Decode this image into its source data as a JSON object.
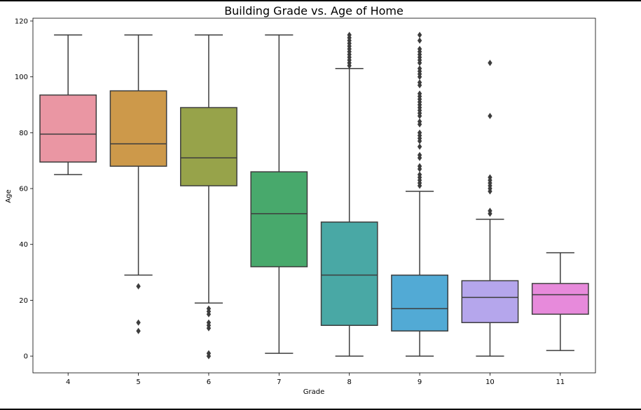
{
  "chart_data": {
    "type": "box",
    "title": "Building Grade vs. Age of Home",
    "xlabel": "Grade",
    "ylabel": "Age",
    "ylim": [
      -6,
      121
    ],
    "yticks": [
      "0",
      "20",
      "40",
      "60",
      "80",
      "100",
      "120"
    ],
    "grid": false,
    "legend": "none",
    "categories": [
      "4",
      "5",
      "6",
      "7",
      "8",
      "9",
      "10",
      "11"
    ],
    "boxes": [
      {
        "category": "4",
        "whisker_low": 65,
        "q1": 69.5,
        "median": 79.5,
        "q3": 93.5,
        "whisker_high": 115,
        "outliers": [],
        "color": "#ea96a3"
      },
      {
        "category": "5",
        "whisker_low": 29,
        "q1": 68,
        "median": 76,
        "q3": 95,
        "whisker_high": 115,
        "outliers": [
          25,
          12,
          9
        ],
        "color": "#cd994a"
      },
      {
        "category": "6",
        "whisker_low": 19,
        "q1": 61,
        "median": 71,
        "q3": 89,
        "whisker_high": 115,
        "outliers": [
          17,
          16,
          15,
          12,
          11,
          10,
          1,
          0
        ],
        "color": "#97a34a"
      },
      {
        "category": "7",
        "whisker_low": 1,
        "q1": 32,
        "median": 51,
        "q3": 66,
        "whisker_high": 115,
        "outliers": [],
        "color": "#48a96c"
      },
      {
        "category": "8",
        "whisker_low": 0,
        "q1": 11,
        "median": 29,
        "q3": 48,
        "whisker_high": 103,
        "outliers": [
          104,
          105,
          106,
          107,
          108,
          109,
          110,
          111,
          112,
          113,
          114,
          115
        ],
        "color": "#49a8a5"
      },
      {
        "category": "9",
        "whisker_low": 0,
        "q1": 9,
        "median": 17,
        "q3": 29,
        "whisker_high": 59,
        "outliers": [
          61,
          62,
          63,
          64,
          65,
          67,
          68,
          71,
          72,
          75,
          77,
          78,
          79,
          80,
          83,
          84,
          86,
          87,
          88,
          89,
          90,
          91,
          92,
          93,
          94,
          97,
          98,
          100,
          101,
          102,
          103,
          105,
          106,
          107,
          108,
          109,
          110,
          113,
          115
        ],
        "color": "#52aad5"
      },
      {
        "category": "10",
        "whisker_low": 0,
        "q1": 12,
        "median": 21,
        "q3": 27,
        "whisker_high": 49,
        "outliers": [
          51,
          52,
          59,
          60,
          61,
          62,
          63,
          64,
          86,
          105
        ],
        "color": "#b5a6ec"
      },
      {
        "category": "11",
        "whisker_low": 2,
        "q1": 15,
        "median": 22,
        "q3": 26,
        "whisker_high": 37,
        "outliers": [],
        "color": "#e78adb"
      }
    ]
  }
}
